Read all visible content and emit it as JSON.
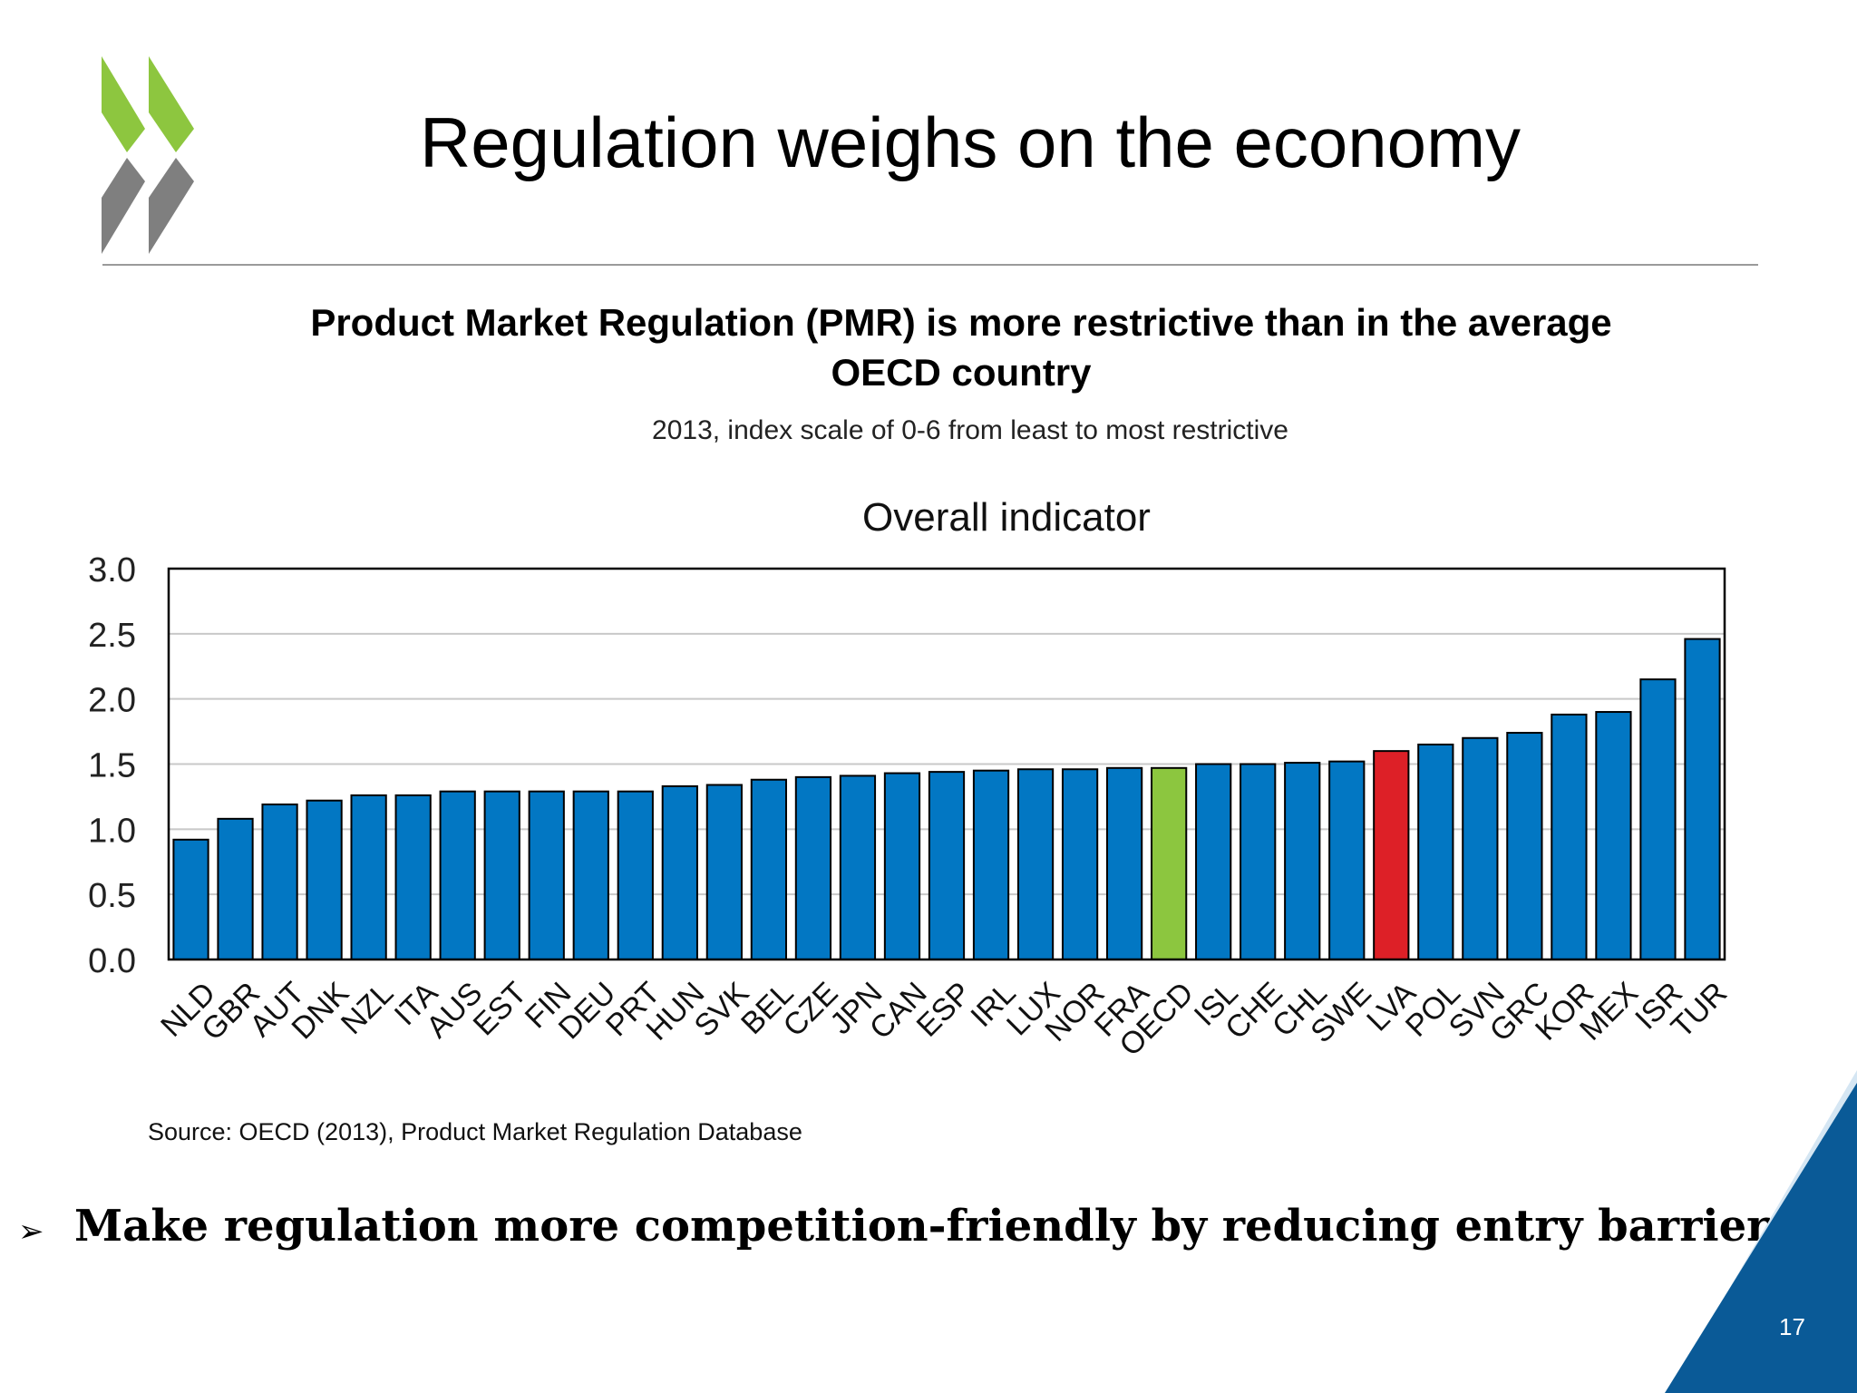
{
  "slide": {
    "title": "Regulation weighs on the economy",
    "chart_heading_line1": "Product Market Regulation (PMR) is more restrictive than in the average",
    "chart_heading_line2": "OECD country",
    "chart_subheading": "2013, index scale of 0-6 from least to most restrictive",
    "source": "Source: OECD (2013), Product Market Regulation Database",
    "bullet_symbol": "➢",
    "bullet_text": "Make regulation more competition-friendly by reducing entry barriers",
    "page_number": "17",
    "colors": {
      "logo_green": "#8dc63f",
      "logo_grey": "#7f7f7f",
      "corner_blue": "#0a5a97",
      "corner_light": "#d5e6f3"
    }
  },
  "chart_data": {
    "type": "bar",
    "title": "Overall indicator",
    "categories": [
      "NLD",
      "GBR",
      "AUT",
      "DNK",
      "NZL",
      "ITA",
      "AUS",
      "EST",
      "FIN",
      "DEU",
      "PRT",
      "HUN",
      "SVK",
      "BEL",
      "CZE",
      "JPN",
      "CAN",
      "ESP",
      "IRL",
      "LUX",
      "NOR",
      "FRA",
      "OECD",
      "ISL",
      "CHE",
      "CHL",
      "SWE",
      "LVA",
      "POL",
      "SVN",
      "GRC",
      "KOR",
      "MEX",
      "ISR",
      "TUR"
    ],
    "values": [
      0.92,
      1.08,
      1.19,
      1.22,
      1.26,
      1.26,
      1.29,
      1.29,
      1.29,
      1.29,
      1.29,
      1.33,
      1.34,
      1.38,
      1.4,
      1.41,
      1.43,
      1.44,
      1.45,
      1.46,
      1.46,
      1.47,
      1.47,
      1.5,
      1.5,
      1.51,
      1.52,
      1.6,
      1.65,
      1.7,
      1.74,
      1.88,
      1.9,
      2.15,
      2.46
    ],
    "ylim": [
      0,
      3.0
    ],
    "yticks": [
      "0.0",
      "0.5",
      "1.0",
      "1.5",
      "2.0",
      "2.5",
      "3.0"
    ],
    "grid": true,
    "colors": {
      "default": "#0277c3",
      "OECD": "#8cc63f",
      "LVA": "#dd2027"
    }
  }
}
